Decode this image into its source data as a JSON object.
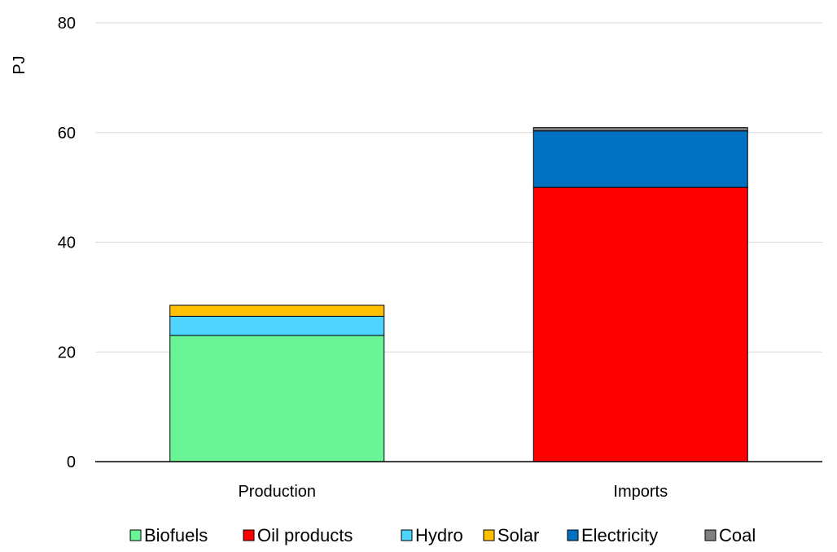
{
  "chart_data": {
    "type": "bar",
    "stacked": true,
    "categories": [
      "Production",
      "Imports"
    ],
    "series": [
      {
        "name": "Biofuels",
        "color": "#69F595",
        "values": [
          23.0,
          0
        ]
      },
      {
        "name": "Oil products",
        "color": "#FF0000",
        "values": [
          0,
          50.0
        ]
      },
      {
        "name": "Hydro",
        "color": "#4FD3FF",
        "values": [
          3.5,
          0
        ]
      },
      {
        "name": "Solar",
        "color": "#FFC000",
        "values": [
          2.0,
          0
        ]
      },
      {
        "name": "Electricity",
        "color": "#0070C0",
        "values": [
          0,
          10.3
        ]
      },
      {
        "name": "Coal",
        "color": "#808080",
        "values": [
          0,
          0.6
        ]
      }
    ],
    "ylabel": "PJ",
    "ylim": [
      0,
      80
    ],
    "yticks": [
      0,
      20,
      40,
      60,
      80
    ],
    "grid": true,
    "legend_position": "bottom"
  }
}
